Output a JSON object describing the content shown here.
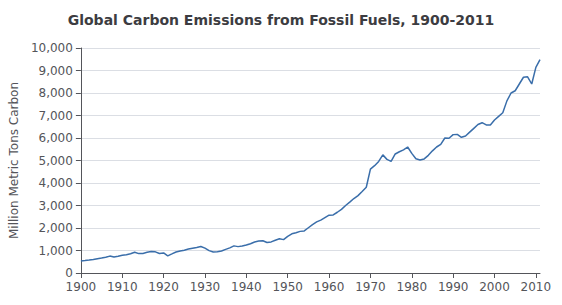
{
  "chart_data": {
    "type": "line",
    "title": "Global Carbon Emissions from Fossil Fuels, 1900-2011",
    "ylabel": "Million Metric Tons Carbon",
    "color": "#3a6eaa",
    "grid": true,
    "xlim": [
      1900,
      2011
    ],
    "xticks": [
      1900,
      1910,
      1920,
      1930,
      1940,
      1950,
      1960,
      1970,
      1980,
      1990,
      2000,
      2010
    ],
    "ylim": [
      0,
      10000
    ],
    "yticks": [
      0,
      {
        "value": 1000,
        "label": "1,000"
      },
      {
        "value": 2000,
        "label": "2,000"
      },
      {
        "value": 3000,
        "label": "3,000"
      },
      {
        "value": 4000,
        "label": "4,000"
      },
      {
        "value": 5000,
        "label": "5,000"
      },
      {
        "value": 6000,
        "label": "6,000"
      },
      {
        "value": 7000,
        "label": "7,000"
      },
      {
        "value": 8000,
        "label": "8,000"
      },
      {
        "value": 9000,
        "label": "9,000"
      },
      {
        "value": 10000,
        "label": "10,000"
      }
    ],
    "x": [
      1900,
      1901,
      1902,
      1903,
      1904,
      1905,
      1906,
      1907,
      1908,
      1909,
      1910,
      1911,
      1912,
      1913,
      1914,
      1915,
      1916,
      1917,
      1918,
      1919,
      1920,
      1921,
      1922,
      1923,
      1924,
      1925,
      1926,
      1927,
      1928,
      1929,
      1930,
      1931,
      1932,
      1933,
      1934,
      1935,
      1936,
      1937,
      1938,
      1939,
      1940,
      1941,
      1942,
      1943,
      1944,
      1945,
      1946,
      1947,
      1948,
      1949,
      1950,
      1951,
      1952,
      1953,
      1954,
      1955,
      1956,
      1957,
      1958,
      1959,
      1960,
      1961,
      1962,
      1963,
      1964,
      1965,
      1966,
      1967,
      1968,
      1969,
      1970,
      1971,
      1972,
      1973,
      1974,
      1975,
      1976,
      1977,
      1978,
      1979,
      1980,
      1981,
      1982,
      1983,
      1984,
      1985,
      1986,
      1987,
      1988,
      1989,
      1990,
      1991,
      1992,
      1993,
      1994,
      1995,
      1996,
      1997,
      1998,
      1999,
      2000,
      2001,
      2002,
      2003,
      2004,
      2005,
      2006,
      2007,
      2008,
      2009,
      2010,
      2011
    ],
    "values": [
      534,
      554,
      576,
      601,
      634,
      663,
      697,
      751,
      712,
      748,
      789,
      810,
      857,
      921,
      862,
      870,
      918,
      958,
      941,
      865,
      893,
      762,
      847,
      933,
      975,
      1013,
      1063,
      1099,
      1134,
      1180,
      1104,
      994,
      932,
      941,
      975,
      1049,
      1116,
      1206,
      1172,
      1199,
      1242,
      1303,
      1376,
      1421,
      1432,
      1354,
      1382,
      1457,
      1522,
      1484,
      1630,
      1740,
      1788,
      1850,
      1870,
      2010,
      2150,
      2270,
      2350,
      2460,
      2570,
      2580,
      2700,
      2830,
      3000,
      3150,
      3310,
      3440,
      3620,
      3810,
      4620,
      4770,
      4960,
      5250,
      5050,
      4960,
      5290,
      5390,
      5470,
      5600,
      5315,
      5080,
      5020,
      5070,
      5230,
      5430,
      5600,
      5720,
      6000,
      5990,
      6150,
      6160,
      6030,
      6090,
      6260,
      6430,
      6600,
      6680,
      6580,
      6580,
      6800,
      6960,
      7120,
      7650,
      8000,
      8100,
      8400,
      8700,
      8720,
      8400,
      9140,
      9480
    ]
  }
}
